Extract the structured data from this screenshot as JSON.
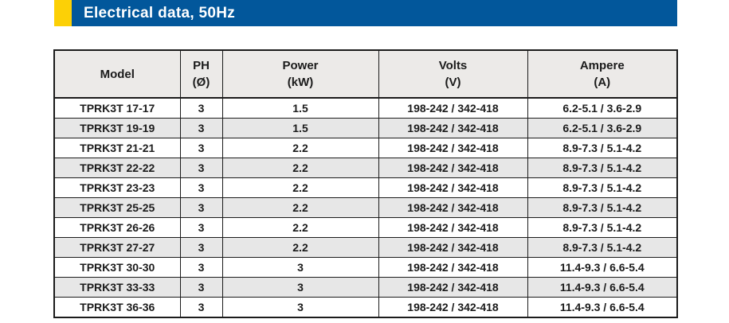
{
  "banner": {
    "title": "Electrical data, 50Hz",
    "accent_color": "#fcd006",
    "bar_color": "#02579b"
  },
  "table": {
    "columns": [
      {
        "label": "Model",
        "unit": ""
      },
      {
        "label": "PH",
        "unit": "(Ø)"
      },
      {
        "label": "Power",
        "unit": "(kW)"
      },
      {
        "label": "Volts",
        "unit": "(V)"
      },
      {
        "label": "Ampere",
        "unit": "(A)"
      }
    ],
    "rows": [
      {
        "model": "TPRK3T 17-17",
        "ph": "3",
        "power": "1.5",
        "volts": "198-242 / 342-418",
        "ampere": "6.2-5.1 / 3.6-2.9"
      },
      {
        "model": "TPRK3T 19-19",
        "ph": "3",
        "power": "1.5",
        "volts": "198-242 / 342-418",
        "ampere": "6.2-5.1 / 3.6-2.9"
      },
      {
        "model": "TPRK3T 21-21",
        "ph": "3",
        "power": "2.2",
        "volts": "198-242 / 342-418",
        "ampere": "8.9-7.3 / 5.1-4.2"
      },
      {
        "model": "TPRK3T 22-22",
        "ph": "3",
        "power": "2.2",
        "volts": "198-242 / 342-418",
        "ampere": "8.9-7.3 / 5.1-4.2"
      },
      {
        "model": "TPRK3T 23-23",
        "ph": "3",
        "power": "2.2",
        "volts": "198-242 / 342-418",
        "ampere": "8.9-7.3 / 5.1-4.2"
      },
      {
        "model": "TPRK3T 25-25",
        "ph": "3",
        "power": "2.2",
        "volts": "198-242 / 342-418",
        "ampere": "8.9-7.3 / 5.1-4.2"
      },
      {
        "model": "TPRK3T 26-26",
        "ph": "3",
        "power": "2.2",
        "volts": "198-242 / 342-418",
        "ampere": "8.9-7.3 / 5.1-4.2"
      },
      {
        "model": "TPRK3T 27-27",
        "ph": "3",
        "power": "2.2",
        "volts": "198-242 / 342-418",
        "ampere": "8.9-7.3 / 5.1-4.2"
      },
      {
        "model": "TPRK3T 30-30",
        "ph": "3",
        "power": "3",
        "volts": "198-242 / 342-418",
        "ampere": "11.4-9.3 / 6.6-5.4"
      },
      {
        "model": "TPRK3T 33-33",
        "ph": "3",
        "power": "3",
        "volts": "198-242 / 342-418",
        "ampere": "11.4-9.3 / 6.6-5.4"
      },
      {
        "model": "TPRK3T 36-36",
        "ph": "3",
        "power": "3",
        "volts": "198-242 / 342-418",
        "ampere": "11.4-9.3 / 6.6-5.4"
      }
    ]
  }
}
